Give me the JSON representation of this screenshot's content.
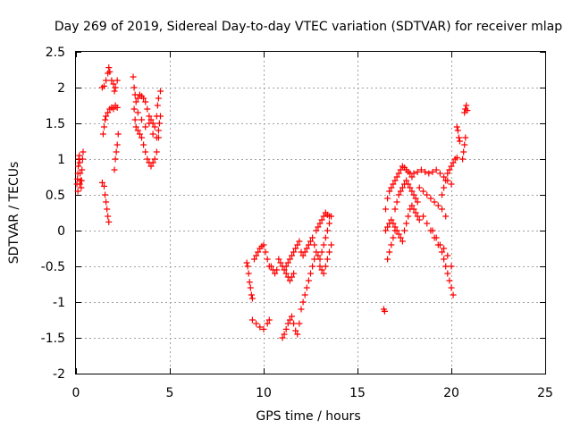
{
  "chart_data": {
    "type": "scatter",
    "title": "Day 269 of 2019, Sidereal Day-to-day VTEC variation (SDTVAR) for receiver mlap",
    "xlabel": "GPS time / hours",
    "ylabel": "SDTVAR / TECUs",
    "xlim": [
      0,
      25
    ],
    "ylim": [
      -2,
      2.5
    ],
    "xticks": [
      0,
      5,
      10,
      15,
      20,
      25
    ],
    "yticks": [
      -2,
      -1.5,
      -1,
      -0.5,
      0,
      0.5,
      1,
      1.5,
      2,
      2.5
    ],
    "xtick_labels": [
      "0",
      "5",
      "10",
      "15",
      "20",
      "25"
    ],
    "ytick_labels": [
      "-2",
      "-1.5",
      "-1",
      "-0.5",
      "0",
      "0.5",
      "1",
      "1.5",
      "2",
      "2.5"
    ],
    "grid": true,
    "marker": "+",
    "color": "#ff0000",
    "series": [
      {
        "name": "SDTVAR",
        "points": [
          [
            0.05,
            0.65
          ],
          [
            0.08,
            0.72
          ],
          [
            0.1,
            0.8
          ],
          [
            0.12,
            0.9
          ],
          [
            0.15,
            1.0
          ],
          [
            0.18,
            1.05
          ],
          [
            0.2,
            0.95
          ],
          [
            0.22,
            0.8
          ],
          [
            0.25,
            0.7
          ],
          [
            0.28,
            0.6
          ],
          [
            0.3,
            0.7
          ],
          [
            0.32,
            0.85
          ],
          [
            0.35,
            1.0
          ],
          [
            0.38,
            1.1
          ],
          [
            0.1,
            0.55
          ],
          [
            0.2,
            0.65
          ],
          [
            1.4,
            0.67
          ],
          [
            1.5,
            0.62
          ],
          [
            1.55,
            0.5
          ],
          [
            1.6,
            0.4
          ],
          [
            1.65,
            0.3
          ],
          [
            1.7,
            0.2
          ],
          [
            1.75,
            0.12
          ],
          [
            1.45,
            1.35
          ],
          [
            1.5,
            1.45
          ],
          [
            1.55,
            1.55
          ],
          [
            1.6,
            1.6
          ],
          [
            1.7,
            1.65
          ],
          [
            1.8,
            1.7
          ],
          [
            1.9,
            1.72
          ],
          [
            2.0,
            1.7
          ],
          [
            2.1,
            1.75
          ],
          [
            2.2,
            1.72
          ],
          [
            1.4,
            2.0
          ],
          [
            1.5,
            2.02
          ],
          [
            1.6,
            2.1
          ],
          [
            1.7,
            2.2
          ],
          [
            1.75,
            2.28
          ],
          [
            1.8,
            2.22
          ],
          [
            1.9,
            2.1
          ],
          [
            2.0,
            2.05
          ],
          [
            2.05,
            1.95
          ],
          [
            2.1,
            2.0
          ],
          [
            2.2,
            2.1
          ],
          [
            2.05,
            0.85
          ],
          [
            2.1,
            1.0
          ],
          [
            2.15,
            1.1
          ],
          [
            2.2,
            1.2
          ],
          [
            2.25,
            1.35
          ],
          [
            3.05,
            2.15
          ],
          [
            3.1,
            2.0
          ],
          [
            3.15,
            1.9
          ],
          [
            3.2,
            1.8
          ],
          [
            3.3,
            1.85
          ],
          [
            3.4,
            1.9
          ],
          [
            3.5,
            1.88
          ],
          [
            3.6,
            1.85
          ],
          [
            3.7,
            1.8
          ],
          [
            3.8,
            1.7
          ],
          [
            3.9,
            1.6
          ],
          [
            4.0,
            1.55
          ],
          [
            4.1,
            1.5
          ],
          [
            4.2,
            1.45
          ],
          [
            4.3,
            1.6
          ],
          [
            4.35,
            1.75
          ],
          [
            4.4,
            1.85
          ],
          [
            4.5,
            1.95
          ],
          [
            3.1,
            1.7
          ],
          [
            3.15,
            1.55
          ],
          [
            3.2,
            1.45
          ],
          [
            3.3,
            1.4
          ],
          [
            3.4,
            1.35
          ],
          [
            3.5,
            1.3
          ],
          [
            3.6,
            1.2
          ],
          [
            3.7,
            1.1
          ],
          [
            3.8,
            1.0
          ],
          [
            3.9,
            0.95
          ],
          [
            4.0,
            0.9
          ],
          [
            4.1,
            0.95
          ],
          [
            4.2,
            1.0
          ],
          [
            4.3,
            1.1
          ],
          [
            4.4,
            1.3
          ],
          [
            4.45,
            1.5
          ],
          [
            3.3,
            1.65
          ],
          [
            3.5,
            1.55
          ],
          [
            3.7,
            1.45
          ],
          [
            3.9,
            1.5
          ],
          [
            4.1,
            1.35
          ],
          [
            4.3,
            1.3
          ],
          [
            4.4,
            1.4
          ],
          [
            4.5,
            1.6
          ],
          [
            9.1,
            -0.45
          ],
          [
            9.15,
            -0.5
          ],
          [
            9.2,
            -0.6
          ],
          [
            9.25,
            -0.72
          ],
          [
            9.3,
            -0.8
          ],
          [
            9.35,
            -0.9
          ],
          [
            9.4,
            -0.95
          ],
          [
            9.5,
            -0.4
          ],
          [
            9.6,
            -0.35
          ],
          [
            9.7,
            -0.3
          ],
          [
            9.8,
            -0.25
          ],
          [
            9.9,
            -0.22
          ],
          [
            10.0,
            -0.2
          ],
          [
            10.1,
            -0.3
          ],
          [
            10.2,
            -0.4
          ],
          [
            10.3,
            -0.5
          ],
          [
            10.4,
            -0.5
          ],
          [
            10.5,
            -0.55
          ],
          [
            10.6,
            -0.6
          ],
          [
            10.7,
            -0.55
          ],
          [
            9.4,
            -1.25
          ],
          [
            9.6,
            -1.3
          ],
          [
            9.8,
            -1.35
          ],
          [
            10.0,
            -1.38
          ],
          [
            10.2,
            -1.3
          ],
          [
            10.3,
            -1.25
          ],
          [
            10.8,
            -0.4
          ],
          [
            10.9,
            -0.45
          ],
          [
            11.0,
            -0.5
          ],
          [
            11.1,
            -0.55
          ],
          [
            11.2,
            -0.5
          ],
          [
            11.3,
            -0.45
          ],
          [
            11.4,
            -0.4
          ],
          [
            11.5,
            -0.35
          ],
          [
            11.6,
            -0.3
          ],
          [
            11.7,
            -0.25
          ],
          [
            11.8,
            -0.2
          ],
          [
            11.9,
            -0.15
          ],
          [
            12.0,
            -0.3
          ],
          [
            12.1,
            -0.35
          ],
          [
            11.2,
            -0.6
          ],
          [
            11.3,
            -0.65
          ],
          [
            11.4,
            -0.7
          ],
          [
            11.5,
            -0.65
          ],
          [
            11.6,
            -0.6
          ],
          [
            11.0,
            -1.5
          ],
          [
            11.1,
            -1.45
          ],
          [
            11.2,
            -1.38
          ],
          [
            11.3,
            -1.3
          ],
          [
            11.4,
            -1.25
          ],
          [
            11.5,
            -1.2
          ],
          [
            11.6,
            -1.3
          ],
          [
            11.7,
            -1.4
          ],
          [
            11.8,
            -1.45
          ],
          [
            11.9,
            -1.3
          ],
          [
            12.0,
            -1.1
          ],
          [
            12.1,
            -1.0
          ],
          [
            12.2,
            -0.9
          ],
          [
            12.3,
            -0.8
          ],
          [
            12.4,
            -0.7
          ],
          [
            12.5,
            -0.6
          ],
          [
            12.6,
            -0.5
          ],
          [
            12.7,
            -0.4
          ],
          [
            12.2,
            -0.3
          ],
          [
            12.3,
            -0.25
          ],
          [
            12.4,
            -0.2
          ],
          [
            12.5,
            -0.15
          ],
          [
            12.6,
            -0.1
          ],
          [
            12.7,
            -0.2
          ],
          [
            12.8,
            -0.3
          ],
          [
            12.9,
            -0.35
          ],
          [
            13.0,
            -0.4
          ],
          [
            13.1,
            -0.3
          ],
          [
            13.2,
            -0.2
          ],
          [
            13.3,
            -0.1
          ],
          [
            13.4,
            0.0
          ],
          [
            13.5,
            0.1
          ],
          [
            13.6,
            0.2
          ],
          [
            12.8,
            0.0
          ],
          [
            12.9,
            0.05
          ],
          [
            13.0,
            0.1
          ],
          [
            13.1,
            0.15
          ],
          [
            13.2,
            0.2
          ],
          [
            13.3,
            0.25
          ],
          [
            13.4,
            0.22
          ],
          [
            13.5,
            0.2
          ],
          [
            13.0,
            -0.5
          ],
          [
            13.1,
            -0.55
          ],
          [
            13.2,
            -0.6
          ],
          [
            13.3,
            -0.5
          ],
          [
            13.4,
            -0.4
          ],
          [
            13.5,
            -0.3
          ],
          [
            13.6,
            -0.2
          ],
          [
            16.4,
            -1.1
          ],
          [
            16.45,
            -1.13
          ],
          [
            16.6,
            -0.4
          ],
          [
            16.7,
            -0.3
          ],
          [
            16.8,
            -0.2
          ],
          [
            16.9,
            -0.1
          ],
          [
            17.0,
            0.0
          ],
          [
            16.5,
            0.0
          ],
          [
            16.6,
            0.05
          ],
          [
            16.7,
            0.1
          ],
          [
            16.8,
            0.15
          ],
          [
            16.9,
            0.1
          ],
          [
            17.0,
            0.05
          ],
          [
            17.1,
            0.0
          ],
          [
            17.2,
            -0.05
          ],
          [
            17.3,
            -0.1
          ],
          [
            17.4,
            -0.15
          ],
          [
            16.5,
            0.3
          ],
          [
            16.6,
            0.45
          ],
          [
            16.7,
            0.55
          ],
          [
            16.8,
            0.6
          ],
          [
            16.9,
            0.65
          ],
          [
            17.0,
            0.7
          ],
          [
            17.1,
            0.75
          ],
          [
            17.2,
            0.8
          ],
          [
            17.3,
            0.85
          ],
          [
            17.4,
            0.9
          ],
          [
            17.5,
            0.88
          ],
          [
            17.6,
            0.85
          ],
          [
            17.7,
            0.82
          ],
          [
            17.8,
            0.8
          ],
          [
            17.9,
            0.75
          ],
          [
            17.0,
            0.3
          ],
          [
            17.1,
            0.4
          ],
          [
            17.2,
            0.5
          ],
          [
            17.3,
            0.55
          ],
          [
            17.4,
            0.6
          ],
          [
            17.5,
            0.65
          ],
          [
            17.6,
            0.7
          ],
          [
            17.7,
            0.65
          ],
          [
            17.8,
            0.6
          ],
          [
            17.9,
            0.55
          ],
          [
            18.0,
            0.5
          ],
          [
            18.1,
            0.45
          ],
          [
            18.2,
            0.4
          ],
          [
            17.5,
            0.0
          ],
          [
            17.6,
            0.1
          ],
          [
            17.7,
            0.2
          ],
          [
            17.8,
            0.3
          ],
          [
            17.9,
            0.35
          ],
          [
            18.0,
            0.3
          ],
          [
            18.1,
            0.25
          ],
          [
            18.2,
            0.2
          ],
          [
            18.3,
            0.15
          ],
          [
            18.0,
            0.8
          ],
          [
            18.2,
            0.82
          ],
          [
            18.4,
            0.85
          ],
          [
            18.6,
            0.82
          ],
          [
            18.8,
            0.8
          ],
          [
            19.0,
            0.82
          ],
          [
            19.2,
            0.85
          ],
          [
            19.4,
            0.8
          ],
          [
            19.6,
            0.75
          ],
          [
            19.8,
            0.7
          ],
          [
            20.0,
            0.65
          ],
          [
            18.3,
            0.6
          ],
          [
            18.5,
            0.55
          ],
          [
            18.7,
            0.5
          ],
          [
            18.9,
            0.45
          ],
          [
            19.1,
            0.4
          ],
          [
            19.3,
            0.35
          ],
          [
            19.5,
            0.3
          ],
          [
            19.7,
            0.2
          ],
          [
            18.5,
            0.2
          ],
          [
            18.7,
            0.1
          ],
          [
            18.9,
            0.0
          ],
          [
            19.1,
            -0.1
          ],
          [
            19.3,
            -0.2
          ],
          [
            19.5,
            -0.3
          ],
          [
            19.6,
            -0.4
          ],
          [
            19.7,
            -0.5
          ],
          [
            19.8,
            -0.6
          ],
          [
            19.9,
            -0.7
          ],
          [
            20.0,
            -0.8
          ],
          [
            20.1,
            -0.9
          ],
          [
            19.0,
            0.0
          ],
          [
            19.2,
            -0.1
          ],
          [
            19.4,
            -0.2
          ],
          [
            19.6,
            -0.25
          ],
          [
            19.8,
            -0.35
          ],
          [
            20.0,
            -0.5
          ],
          [
            19.5,
            0.5
          ],
          [
            19.6,
            0.6
          ],
          [
            19.7,
            0.7
          ],
          [
            19.8,
            0.8
          ],
          [
            19.9,
            0.85
          ],
          [
            20.0,
            0.9
          ],
          [
            20.1,
            0.95
          ],
          [
            20.2,
            1.0
          ],
          [
            20.3,
            1.02
          ],
          [
            20.3,
            1.45
          ],
          [
            20.35,
            1.4
          ],
          [
            20.4,
            1.3
          ],
          [
            20.45,
            1.25
          ],
          [
            20.6,
            1.0
          ],
          [
            20.65,
            1.1
          ],
          [
            20.7,
            1.2
          ],
          [
            20.75,
            1.3
          ],
          [
            20.7,
            1.65
          ],
          [
            20.75,
            1.7
          ],
          [
            20.8,
            1.75
          ],
          [
            20.85,
            1.68
          ]
        ]
      }
    ]
  }
}
